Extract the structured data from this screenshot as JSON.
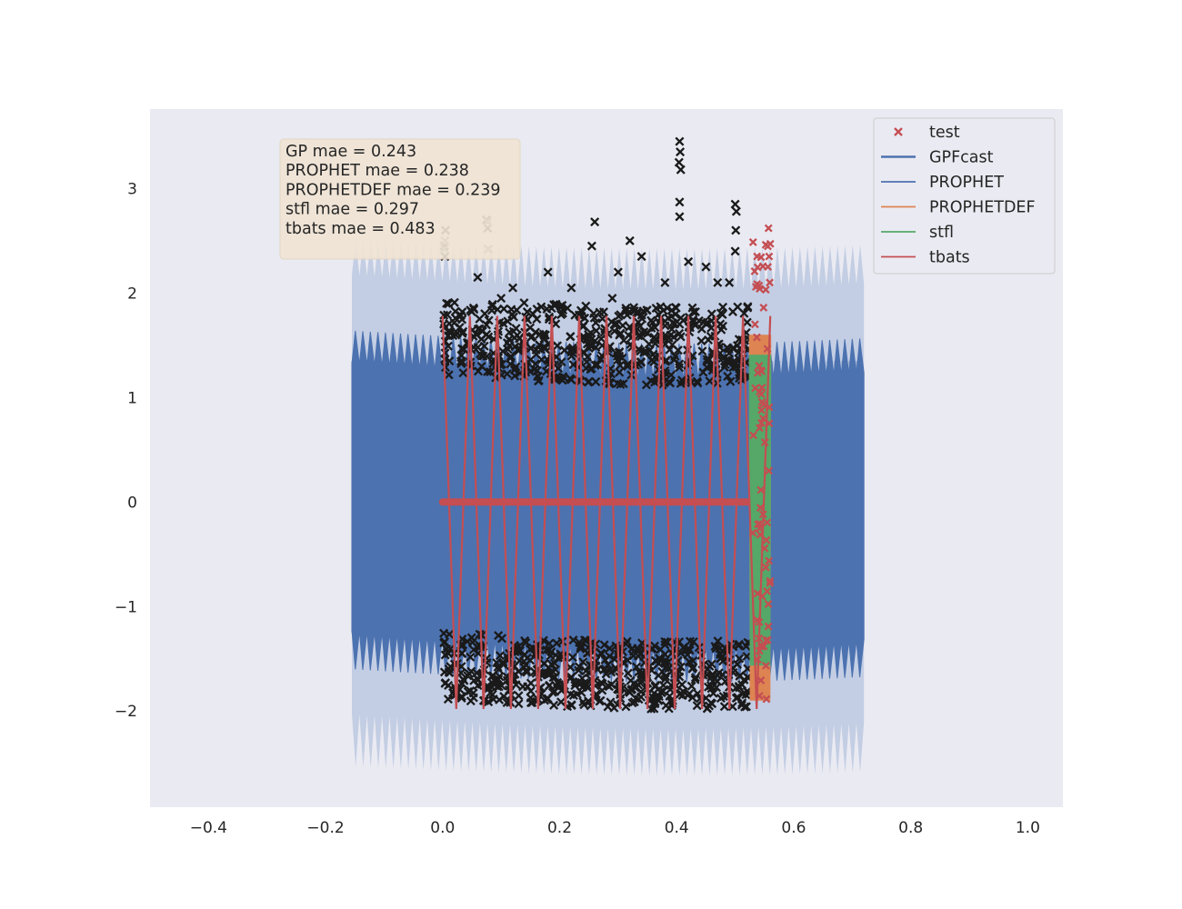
{
  "chart_data": {
    "type": "line",
    "title": "",
    "xlabel": "",
    "ylabel": "",
    "xlim": [
      -0.5,
      1.06
    ],
    "ylim": [
      -2.92,
      3.76
    ],
    "grid": false,
    "x_ticks": [
      -0.4,
      -0.2,
      0.0,
      0.2,
      0.4,
      0.6,
      0.8,
      1.0
    ],
    "x_tick_labels": [
      "−0.4",
      "−0.2",
      "0.0",
      "0.2",
      "0.4",
      "0.6",
      "0.8",
      "1.0"
    ],
    "y_ticks": [
      3,
      2,
      1,
      0,
      -1,
      -2
    ],
    "y_tick_labels": [
      "3",
      "2",
      "1",
      "0",
      "−1",
      "−2"
    ],
    "legend_position": "top-right",
    "annotation": [
      "GP mae = 0.243",
      "PROPHET mae = 0.238",
      "PROPHETDEF mae = 0.239",
      "stfl mae = 0.297",
      "tbats mae = 0.483"
    ],
    "series": [
      {
        "name": "test",
        "kind": "markers",
        "marker": "x",
        "color": "#c44e52",
        "x_range": [
          0.53,
          0.56
        ],
        "y_range": [
          -1.95,
          2.62
        ]
      },
      {
        "name": "GPFcast",
        "kind": "line",
        "color": "#4c72b0",
        "x_range": [
          -0.155,
          0.72
        ],
        "y_range": [
          -1.7,
          1.72
        ],
        "uncertainty_band": {
          "color": "#c3cee4",
          "y_range": [
            -2.6,
            2.55
          ]
        }
      },
      {
        "name": "PROPHET",
        "kind": "line",
        "color": "#4c72b0",
        "x_range": [
          -0.155,
          0.72
        ],
        "y_range": [
          -1.7,
          1.72
        ]
      },
      {
        "name": "PROPHETDEF",
        "kind": "line",
        "color": "#dd8452",
        "x_range": [
          0.525,
          0.56
        ],
        "y_range": [
          -1.9,
          1.6
        ]
      },
      {
        "name": "stfl",
        "kind": "line",
        "color": "#55a868",
        "x_range": [
          0.525,
          0.56
        ],
        "y_range": [
          -1.9,
          1.6
        ]
      },
      {
        "name": "tbats",
        "kind": "line",
        "color": "#c44e52",
        "x_range": [
          0.0,
          0.56
        ],
        "y_range": [
          -1.98,
          1.78
        ],
        "flat_segment": {
          "x_range": [
            0.0,
            0.525
          ],
          "y": 0.0
        }
      }
    ],
    "training_points": {
      "marker": "x",
      "color": "#1a1a1a",
      "x_range": [
        0.0,
        0.56
      ],
      "y_range": [
        -1.95,
        3.45
      ]
    }
  },
  "colors": {
    "plot_background": "#eaeaf2",
    "page_background": "#ffffff",
    "annotation_box": "#f0e4d4",
    "band": "#c3cee4",
    "primary": "#4c72b0"
  }
}
